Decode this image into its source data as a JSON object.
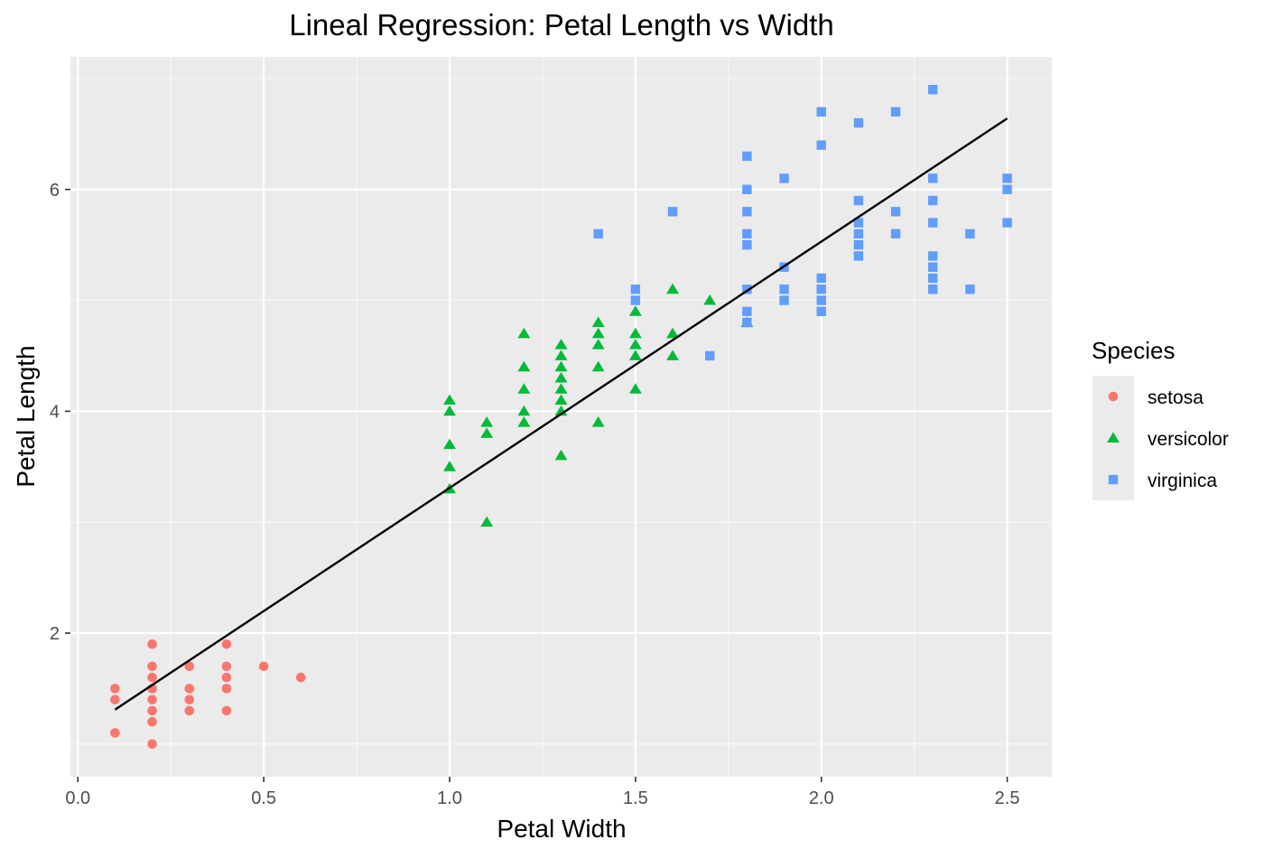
{
  "chart_data": {
    "type": "scatter",
    "title": "Lineal Regression: Petal Length vs Width",
    "xlabel": "Petal Width",
    "ylabel": "Petal Length",
    "xlim": [
      -0.02,
      2.62
    ],
    "ylim": [
      0.705,
      7.195
    ],
    "x_ticks": [
      0.0,
      0.5,
      1.0,
      1.5,
      2.0,
      2.5
    ],
    "x_tick_labels": [
      "0.0",
      "0.5",
      "1.0",
      "1.5",
      "2.0",
      "2.5"
    ],
    "y_ticks": [
      2,
      4,
      6
    ],
    "y_tick_labels": [
      "2",
      "4",
      "6"
    ],
    "grid": true,
    "background": "#ebebeb",
    "legend": {
      "title": "Species",
      "position": "right"
    },
    "series": [
      {
        "name": "setosa",
        "color": "#f8766d",
        "marker": "circle",
        "points": [
          [
            0.1,
            1.5
          ],
          [
            0.1,
            1.4
          ],
          [
            0.1,
            1.1
          ],
          [
            0.2,
            1.9
          ],
          [
            0.2,
            1.7
          ],
          [
            0.2,
            1.6
          ],
          [
            0.2,
            1.5
          ],
          [
            0.2,
            1.4
          ],
          [
            0.2,
            1.3
          ],
          [
            0.2,
            1.2
          ],
          [
            0.2,
            1.0
          ],
          [
            0.3,
            1.7
          ],
          [
            0.3,
            1.5
          ],
          [
            0.3,
            1.4
          ],
          [
            0.3,
            1.3
          ],
          [
            0.4,
            1.9
          ],
          [
            0.4,
            1.7
          ],
          [
            0.4,
            1.6
          ],
          [
            0.4,
            1.5
          ],
          [
            0.4,
            1.3
          ],
          [
            0.5,
            1.7
          ],
          [
            0.6,
            1.6
          ]
        ]
      },
      {
        "name": "versicolor",
        "color": "#00ba38",
        "marker": "triangle",
        "points": [
          [
            1.0,
            4.1
          ],
          [
            1.0,
            4.0
          ],
          [
            1.0,
            3.7
          ],
          [
            1.0,
            3.5
          ],
          [
            1.0,
            3.3
          ],
          [
            1.1,
            3.9
          ],
          [
            1.1,
            3.8
          ],
          [
            1.1,
            3.0
          ],
          [
            1.2,
            4.7
          ],
          [
            1.2,
            4.4
          ],
          [
            1.2,
            4.2
          ],
          [
            1.2,
            4.0
          ],
          [
            1.2,
            3.9
          ],
          [
            1.3,
            4.6
          ],
          [
            1.3,
            4.5
          ],
          [
            1.3,
            4.4
          ],
          [
            1.3,
            4.3
          ],
          [
            1.3,
            4.2
          ],
          [
            1.3,
            4.1
          ],
          [
            1.3,
            4.0
          ],
          [
            1.3,
            3.6
          ],
          [
            1.4,
            4.8
          ],
          [
            1.4,
            4.7
          ],
          [
            1.4,
            4.6
          ],
          [
            1.4,
            4.4
          ],
          [
            1.4,
            3.9
          ],
          [
            1.5,
            4.9
          ],
          [
            1.5,
            4.7
          ],
          [
            1.5,
            4.6
          ],
          [
            1.5,
            4.5
          ],
          [
            1.5,
            4.2
          ],
          [
            1.6,
            5.1
          ],
          [
            1.6,
            4.7
          ],
          [
            1.6,
            4.5
          ],
          [
            1.7,
            5.0
          ],
          [
            1.8,
            4.8
          ]
        ]
      },
      {
        "name": "virginica",
        "color": "#619cff",
        "marker": "square",
        "points": [
          [
            1.4,
            5.6
          ],
          [
            1.5,
            5.1
          ],
          [
            1.5,
            5.0
          ],
          [
            1.6,
            5.8
          ],
          [
            1.7,
            4.5
          ],
          [
            1.8,
            6.3
          ],
          [
            1.8,
            6.0
          ],
          [
            1.8,
            5.8
          ],
          [
            1.8,
            5.6
          ],
          [
            1.8,
            5.5
          ],
          [
            1.8,
            5.1
          ],
          [
            1.8,
            4.9
          ],
          [
            1.8,
            4.8
          ],
          [
            1.9,
            6.1
          ],
          [
            1.9,
            5.3
          ],
          [
            1.9,
            5.1
          ],
          [
            1.9,
            5.0
          ],
          [
            2.0,
            6.7
          ],
          [
            2.0,
            6.4
          ],
          [
            2.0,
            5.2
          ],
          [
            2.0,
            5.1
          ],
          [
            2.0,
            5.0
          ],
          [
            2.0,
            4.9
          ],
          [
            2.1,
            6.6
          ],
          [
            2.1,
            5.9
          ],
          [
            2.1,
            5.7
          ],
          [
            2.1,
            5.6
          ],
          [
            2.1,
            5.5
          ],
          [
            2.1,
            5.4
          ],
          [
            2.2,
            6.7
          ],
          [
            2.2,
            5.8
          ],
          [
            2.2,
            5.6
          ],
          [
            2.3,
            6.9
          ],
          [
            2.3,
            6.1
          ],
          [
            2.3,
            5.9
          ],
          [
            2.3,
            5.7
          ],
          [
            2.3,
            5.4
          ],
          [
            2.3,
            5.3
          ],
          [
            2.3,
            5.2
          ],
          [
            2.3,
            5.1
          ],
          [
            2.4,
            5.6
          ],
          [
            2.4,
            5.1
          ],
          [
            2.5,
            6.1
          ],
          [
            2.5,
            6.0
          ],
          [
            2.5,
            5.7
          ]
        ]
      }
    ],
    "regression_line": {
      "color": "#000000",
      "points": [
        [
          0.1,
          1.31
        ],
        [
          2.5,
          6.64
        ]
      ]
    }
  }
}
